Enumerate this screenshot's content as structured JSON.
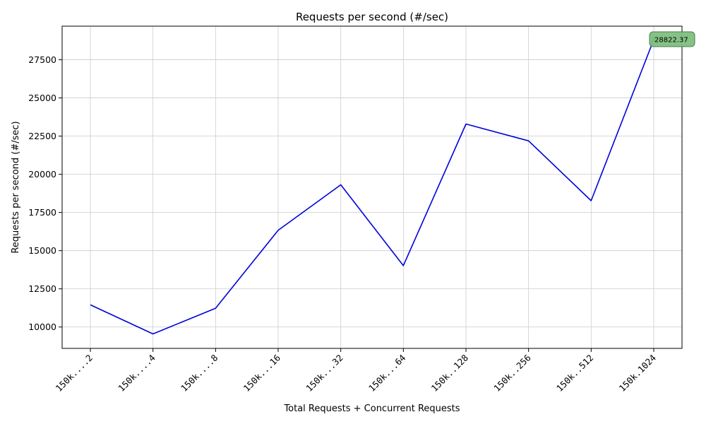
{
  "chart_data": {
    "type": "line",
    "title": "Requests per second (#/sec)",
    "xlabel": "Total Requests + Concurrent Requests",
    "ylabel": "Requests per second (#/sec)",
    "categories": [
      "150k....2",
      "150k....4",
      "150k....8",
      "150k...16",
      "150k...32",
      "150k...64",
      "150k..128",
      "150k..256",
      "150k..512",
      "150k.1024"
    ],
    "series": [
      {
        "values": [
          11450,
          9550,
          11230,
          16330,
          19310,
          14020,
          23290,
          22190,
          18270,
          28822.37
        ],
        "color": "#0000dd"
      }
    ],
    "ylim": [
      8600,
      29700
    ],
    "yticks": [
      10000,
      12500,
      15000,
      17500,
      20000,
      22500,
      25000,
      27500
    ],
    "ytick_labels": [
      "10000",
      "12500",
      "15000",
      "17500",
      "20000",
      "22500",
      "25000",
      "27500"
    ],
    "grid": true,
    "annotation": {
      "category_index": 9,
      "text": "28822.37",
      "marker": "triangle",
      "marker_color": "#008000",
      "box_color": "#7fbf7f"
    }
  }
}
